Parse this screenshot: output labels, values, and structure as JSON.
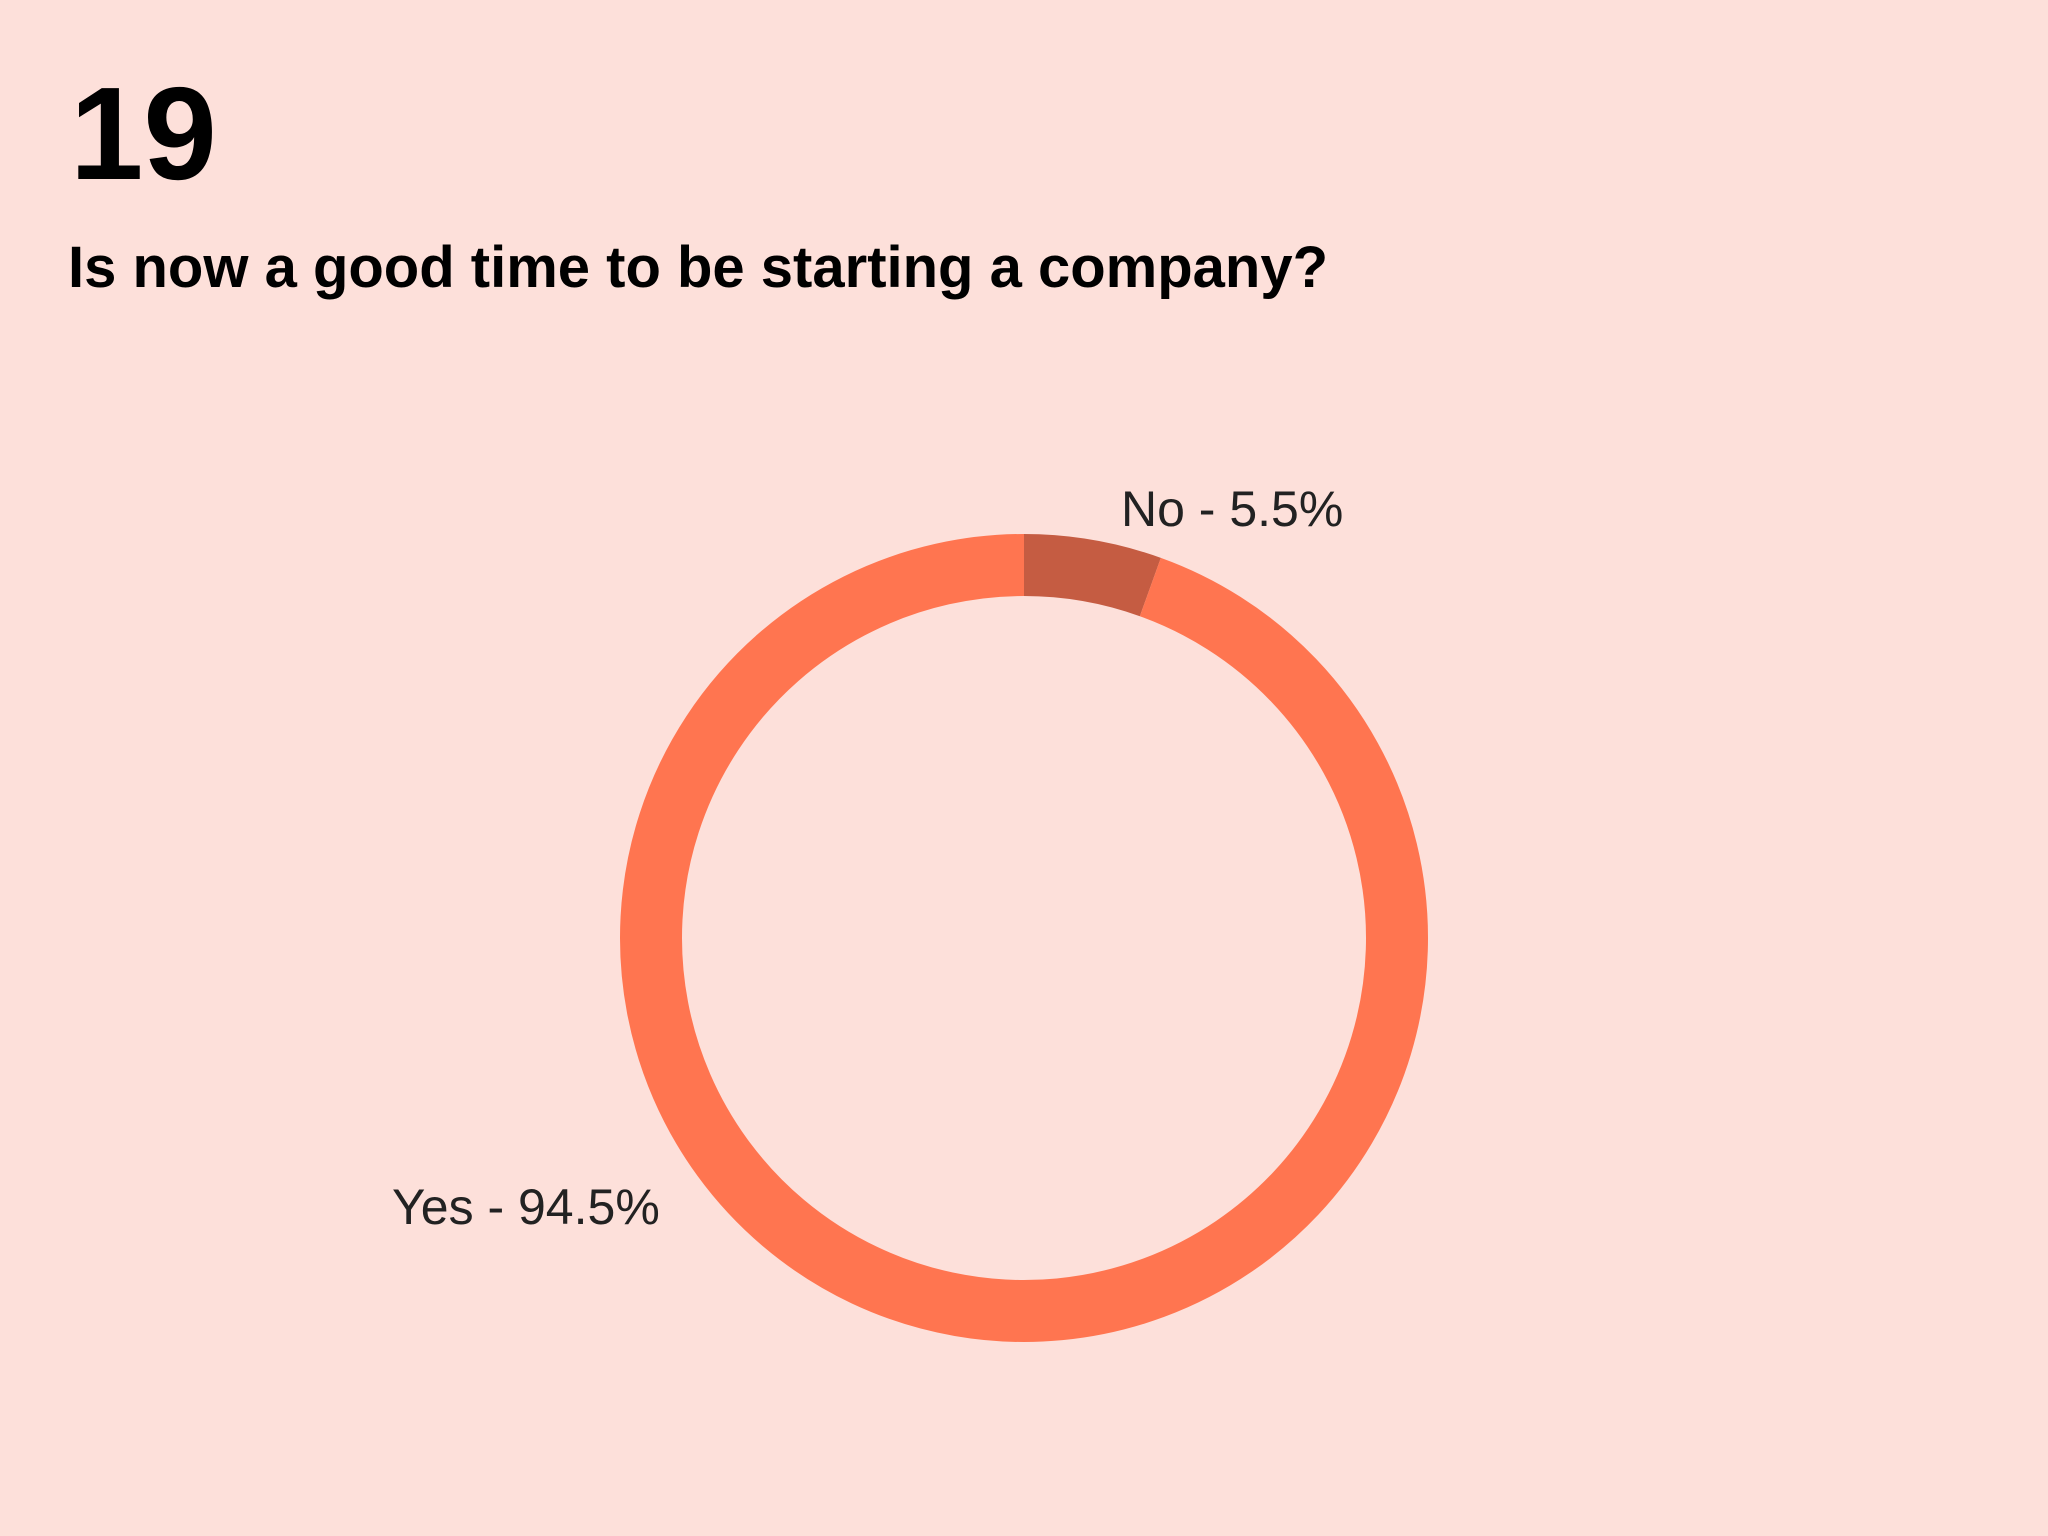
{
  "header": {
    "number": "19"
  },
  "chart_data": {
    "type": "donut",
    "title": "Is now a good time to be starting a company?",
    "values": [
      94.5,
      5.5
    ],
    "value_labels": [
      "Yes - 94.5%",
      "No - 5.5%"
    ],
    "colors": [
      "#ff7550",
      "#c55c42"
    ]
  }
}
